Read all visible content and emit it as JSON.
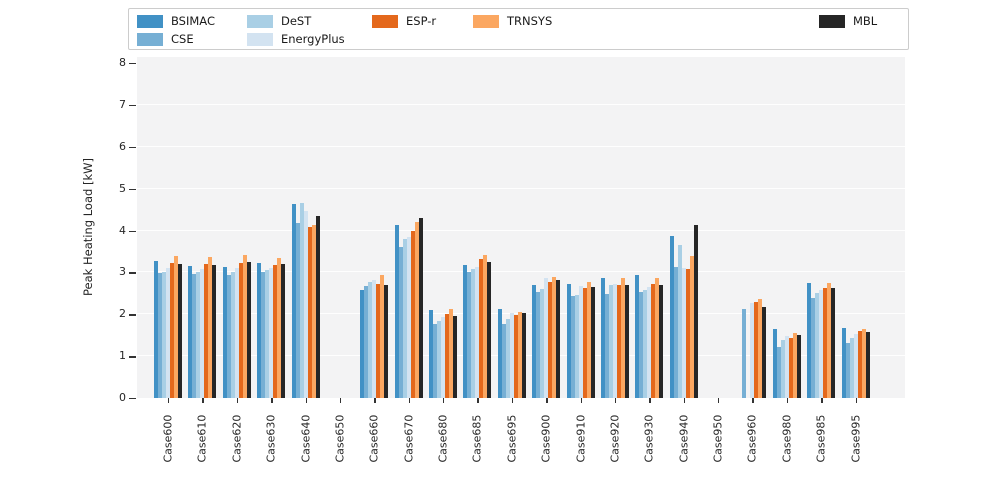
{
  "figure": {
    "y_axis_label": "Peak Heating Load [kW]"
  },
  "chart_data": {
    "type": "bar",
    "title": "",
    "xlabel": "",
    "ylabel": "Peak Heating Load [kW]",
    "ylim": [
      0,
      8
    ],
    "yticks": [
      0,
      1,
      2,
      3,
      4,
      5,
      6,
      7,
      8
    ],
    "grid": true,
    "legend_position": "top",
    "categories": [
      "Case600",
      "Case610",
      "Case620",
      "Case630",
      "Case640",
      "Case650",
      "Case660",
      "Case670",
      "Case680",
      "Case685",
      "Case695",
      "Case900",
      "Case910",
      "Case920",
      "Case930",
      "Case940",
      "Case950",
      "Case960",
      "Case980",
      "Case985",
      "Case995"
    ],
    "series": [
      {
        "name": "BSIMAC",
        "color": "#4191c5",
        "values": [
          3.27,
          3.15,
          3.13,
          3.22,
          4.64,
          null,
          2.59,
          4.12,
          2.09,
          3.17,
          2.12,
          2.71,
          2.73,
          2.86,
          2.94,
          3.87,
          null,
          null,
          1.65,
          2.74,
          1.68
        ]
      },
      {
        "name": "CSE",
        "color": "#76afd4",
        "values": [
          2.98,
          2.96,
          2.94,
          3.0,
          4.18,
          null,
          2.67,
          3.6,
          1.77,
          3.02,
          1.77,
          2.54,
          2.43,
          2.49,
          2.52,
          3.13,
          null,
          2.13,
          1.21,
          2.4,
          1.31
        ]
      },
      {
        "name": "DeST",
        "color": "#a9cfe5",
        "values": [
          3.02,
          3.0,
          3.02,
          3.05,
          4.66,
          null,
          2.78,
          3.8,
          1.84,
          3.07,
          1.89,
          2.6,
          2.46,
          2.7,
          2.57,
          3.65,
          null,
          null,
          1.38,
          2.5,
          1.43
        ]
      },
      {
        "name": "EnergyPlus",
        "color": "#d3e3f1",
        "values": [
          3.1,
          3.08,
          3.1,
          3.11,
          4.46,
          null,
          2.81,
          3.84,
          1.93,
          3.12,
          2.02,
          2.86,
          2.67,
          2.73,
          2.65,
          3.1,
          null,
          2.26,
          1.48,
          2.59,
          1.52
        ]
      },
      {
        "name": "ESP-r",
        "color": "#e4681c",
        "values": [
          3.22,
          3.2,
          3.23,
          3.17,
          4.08,
          null,
          2.73,
          3.99,
          2.0,
          3.32,
          1.99,
          2.78,
          2.63,
          2.7,
          2.73,
          3.09,
          null,
          2.3,
          1.43,
          2.62,
          1.6
        ]
      },
      {
        "name": "TRNSYS",
        "color": "#fba761",
        "values": [
          3.38,
          3.36,
          3.41,
          3.35,
          4.13,
          null,
          2.94,
          4.2,
          2.12,
          3.41,
          2.06,
          2.9,
          2.78,
          2.86,
          2.86,
          3.39,
          null,
          2.36,
          1.55,
          2.74,
          1.64
        ]
      },
      {
        "name": "MBL",
        "color": "#262626",
        "values": [
          3.21,
          3.17,
          3.25,
          3.21,
          4.35,
          null,
          2.7,
          4.3,
          1.96,
          3.25,
          2.03,
          2.81,
          2.65,
          2.71,
          2.69,
          4.12,
          null,
          2.18,
          1.5,
          2.63,
          1.57
        ]
      }
    ]
  }
}
